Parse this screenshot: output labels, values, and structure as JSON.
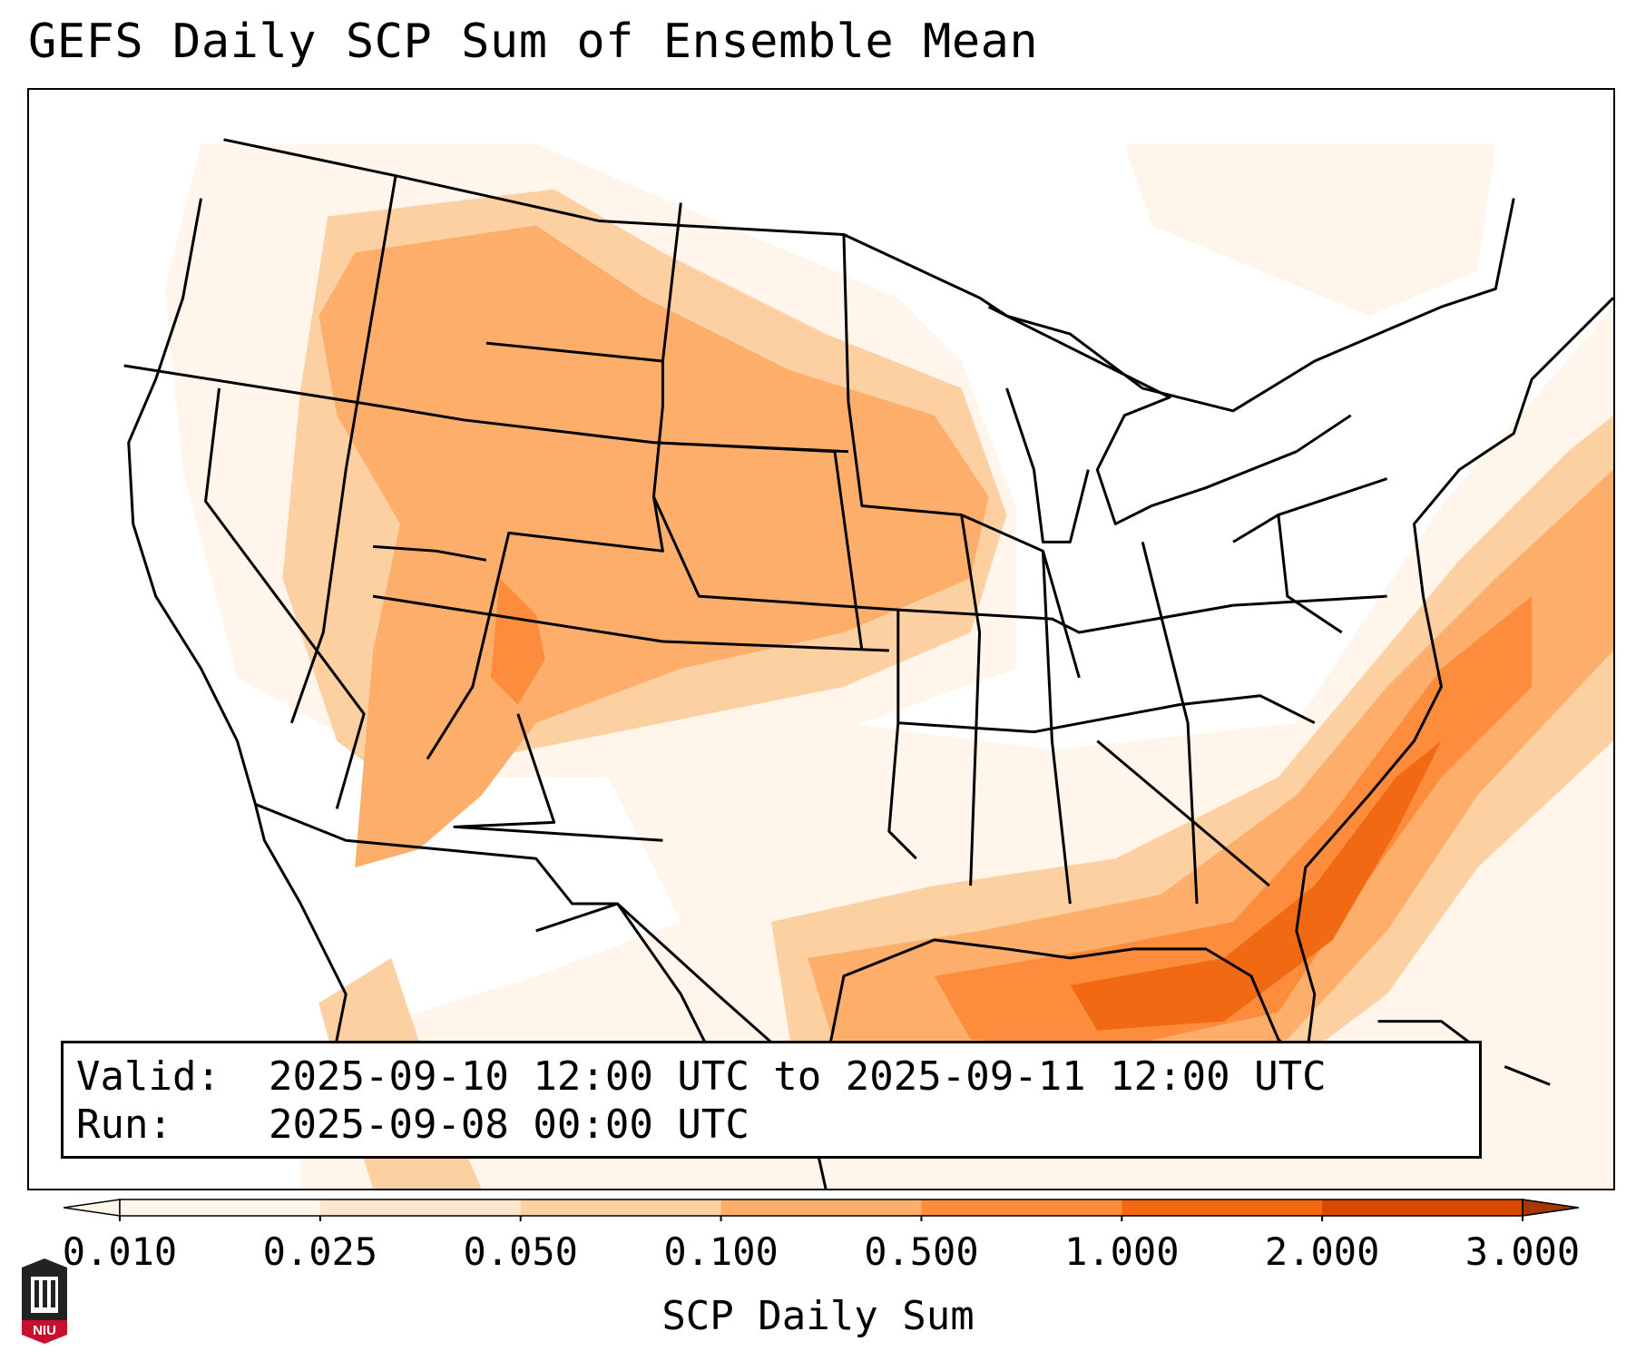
{
  "title": "GEFS Daily SCP Sum of Ensemble Mean",
  "info": {
    "valid_label": "Valid:",
    "valid_value": "2025-09-10 12:00 UTC to 2025-09-11 12:00 UTC",
    "run_label": "Run:",
    "run_value": "2025-09-08 00:00 UTC"
  },
  "colorbar": {
    "title": "SCP Daily Sum",
    "ticks": [
      "0.010",
      "0.025",
      "0.050",
      "0.100",
      "0.500",
      "1.000",
      "2.000",
      "3.000"
    ],
    "colors": [
      "#fff5eb",
      "#fee6ce",
      "#fdd0a2",
      "#fdae6b",
      "#fd8d3c",
      "#f16913",
      "#d94801",
      "#a63603"
    ]
  },
  "logo": {
    "text": "NIU"
  }
}
